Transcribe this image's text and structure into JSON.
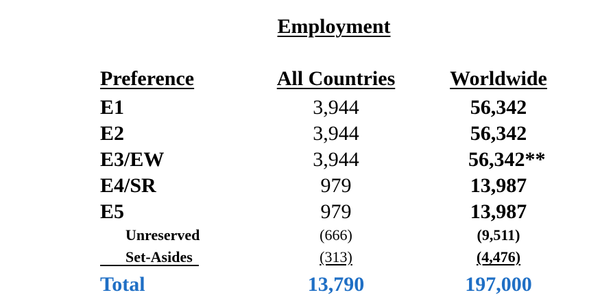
{
  "title": "Employment",
  "headers": {
    "preference": "Preference",
    "all_countries": "All Countries",
    "worldwide": "Worldwide"
  },
  "rows": [
    {
      "preference": "E1",
      "all_countries": "3,944",
      "worldwide": "56,342"
    },
    {
      "preference": "E2",
      "all_countries": "3,944",
      "worldwide": "56,342"
    },
    {
      "preference": "E3/EW",
      "all_countries": "3,944",
      "worldwide": "56,342**"
    },
    {
      "preference": "E4/SR",
      "all_countries": "979",
      "worldwide": "13,987"
    },
    {
      "preference": "E5",
      "all_countries": "979",
      "worldwide": "13,987"
    }
  ],
  "sub_rows": [
    {
      "preference": "Unreserved",
      "all_countries": "(666)",
      "worldwide": "(9,511)"
    },
    {
      "preference": "Set-Asides",
      "all_countries": "(313)",
      "worldwide": "(4,476)"
    }
  ],
  "total": {
    "label": "Total",
    "all_countries": "13,790",
    "worldwide": "197,000"
  },
  "colors": {
    "total_text": "#1f6fc5",
    "text": "#000000",
    "background": "#ffffff"
  }
}
